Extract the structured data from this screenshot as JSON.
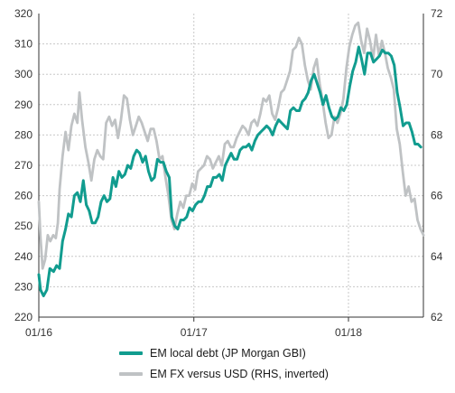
{
  "chart_data": {
    "type": "line",
    "x_ticks": [
      "01/16",
      "01/17",
      "01/18"
    ],
    "y_left": {
      "min": 220,
      "max": 320,
      "ticks": [
        220,
        230,
        240,
        250,
        260,
        270,
        280,
        290,
        300,
        310,
        320
      ]
    },
    "y_right": {
      "min": 62,
      "max": 72,
      "inverted": true,
      "tick_labels_top_to_bottom": [
        72,
        70,
        68,
        66,
        64,
        62
      ]
    },
    "grid": "dashed-gray",
    "legend_position": "bottom",
    "series": [
      {
        "name": "EM local debt (JP Morgan GBI)",
        "axis": "left",
        "color": "#119c8f",
        "points": [
          [
            "2016-01-01",
            234
          ],
          [
            "2016-01-05",
            229
          ],
          [
            "2016-01-12",
            227
          ],
          [
            "2016-01-20",
            229
          ],
          [
            "2016-01-27",
            236
          ],
          [
            "2016-02-05",
            235
          ],
          [
            "2016-02-12",
            237
          ],
          [
            "2016-02-19",
            236
          ],
          [
            "2016-02-26",
            245
          ],
          [
            "2016-03-04",
            249
          ],
          [
            "2016-03-11",
            254
          ],
          [
            "2016-03-18",
            253
          ],
          [
            "2016-03-25",
            260
          ],
          [
            "2016-04-01",
            261
          ],
          [
            "2016-04-08",
            258
          ],
          [
            "2016-04-15",
            265
          ],
          [
            "2016-04-22",
            257
          ],
          [
            "2016-04-29",
            255
          ],
          [
            "2016-05-06",
            251
          ],
          [
            "2016-05-13",
            251
          ],
          [
            "2016-05-20",
            253
          ],
          [
            "2016-05-27",
            258
          ],
          [
            "2016-06-03",
            260
          ],
          [
            "2016-06-10",
            258
          ],
          [
            "2016-06-17",
            259
          ],
          [
            "2016-06-24",
            266
          ],
          [
            "2016-07-01",
            263
          ],
          [
            "2016-07-08",
            268
          ],
          [
            "2016-07-15",
            266
          ],
          [
            "2016-07-22",
            267
          ],
          [
            "2016-07-29",
            270
          ],
          [
            "2016-08-05",
            269
          ],
          [
            "2016-08-12",
            273
          ],
          [
            "2016-08-19",
            275
          ],
          [
            "2016-08-26",
            274
          ],
          [
            "2016-09-02",
            271
          ],
          [
            "2016-09-09",
            273
          ],
          [
            "2016-09-16",
            268
          ],
          [
            "2016-09-23",
            265
          ],
          [
            "2016-09-30",
            266
          ],
          [
            "2016-10-07",
            272
          ],
          [
            "2016-10-14",
            271
          ],
          [
            "2016-10-21",
            271
          ],
          [
            "2016-10-28",
            268
          ],
          [
            "2016-11-04",
            266
          ],
          [
            "2016-11-10",
            253
          ],
          [
            "2016-11-17",
            250
          ],
          [
            "2016-11-24",
            249
          ],
          [
            "2016-12-01",
            252
          ],
          [
            "2016-12-08",
            252
          ],
          [
            "2016-12-15",
            253
          ],
          [
            "2016-12-22",
            256
          ],
          [
            "2016-12-29",
            255
          ],
          [
            "2017-01-05",
            257
          ],
          [
            "2017-01-12",
            258
          ],
          [
            "2017-01-19",
            258
          ],
          [
            "2017-01-26",
            260
          ],
          [
            "2017-02-02",
            263
          ],
          [
            "2017-02-09",
            263
          ],
          [
            "2017-02-16",
            266
          ],
          [
            "2017-02-23",
            266
          ],
          [
            "2017-03-02",
            267
          ],
          [
            "2017-03-09",
            265
          ],
          [
            "2017-03-16",
            270
          ],
          [
            "2017-03-23",
            272
          ],
          [
            "2017-03-30",
            274
          ],
          [
            "2017-04-06",
            272
          ],
          [
            "2017-04-13",
            272
          ],
          [
            "2017-04-20",
            275
          ],
          [
            "2017-04-27",
            276
          ],
          [
            "2017-05-04",
            276
          ],
          [
            "2017-05-11",
            277
          ],
          [
            "2017-05-18",
            275
          ],
          [
            "2017-05-25",
            278
          ],
          [
            "2017-06-01",
            280
          ],
          [
            "2017-06-08",
            281
          ],
          [
            "2017-06-15",
            282
          ],
          [
            "2017-06-22",
            283
          ],
          [
            "2017-06-29",
            282
          ],
          [
            "2017-07-06",
            280
          ],
          [
            "2017-07-13",
            283
          ],
          [
            "2017-07-20",
            285
          ],
          [
            "2017-07-27",
            284
          ],
          [
            "2017-08-03",
            283
          ],
          [
            "2017-08-10",
            282
          ],
          [
            "2017-08-17",
            288
          ],
          [
            "2017-08-24",
            289
          ],
          [
            "2017-08-31",
            288
          ],
          [
            "2017-09-07",
            288
          ],
          [
            "2017-09-14",
            291
          ],
          [
            "2017-09-21",
            292
          ],
          [
            "2017-09-28",
            294
          ],
          [
            "2017-10-05",
            298
          ],
          [
            "2017-10-12",
            300
          ],
          [
            "2017-10-19",
            297
          ],
          [
            "2017-10-26",
            294
          ],
          [
            "2017-11-02",
            290
          ],
          [
            "2017-11-09",
            293
          ],
          [
            "2017-11-16",
            289
          ],
          [
            "2017-11-23",
            286
          ],
          [
            "2017-11-30",
            285
          ],
          [
            "2017-12-07",
            286
          ],
          [
            "2017-12-14",
            289
          ],
          [
            "2017-12-21",
            288
          ],
          [
            "2017-12-28",
            290
          ],
          [
            "2018-01-04",
            296
          ],
          [
            "2018-01-11",
            301
          ],
          [
            "2018-01-18",
            304
          ],
          [
            "2018-01-25",
            309
          ],
          [
            "2018-02-01",
            305
          ],
          [
            "2018-02-08",
            300
          ],
          [
            "2018-02-15",
            307
          ],
          [
            "2018-02-22",
            307
          ],
          [
            "2018-03-01",
            304
          ],
          [
            "2018-03-08",
            305
          ],
          [
            "2018-03-15",
            306
          ],
          [
            "2018-03-22",
            308
          ],
          [
            "2018-03-29",
            307
          ],
          [
            "2018-04-05",
            307
          ],
          [
            "2018-04-12",
            306
          ],
          [
            "2018-04-19",
            303
          ],
          [
            "2018-04-26",
            294
          ],
          [
            "2018-05-03",
            289
          ],
          [
            "2018-05-10",
            283
          ],
          [
            "2018-05-17",
            284
          ],
          [
            "2018-05-24",
            284
          ],
          [
            "2018-05-31",
            281
          ],
          [
            "2018-06-07",
            277
          ],
          [
            "2018-06-14",
            277
          ],
          [
            "2018-06-21",
            276
          ]
        ]
      },
      {
        "name": "EM FX versus USD (RHS, inverted)",
        "axis": "right",
        "color": "#bfc2c4",
        "points": [
          [
            "2016-01-01",
            65.8
          ],
          [
            "2016-01-05",
            64.6
          ],
          [
            "2016-01-10",
            63.6
          ],
          [
            "2016-01-16",
            63.9
          ],
          [
            "2016-01-22",
            64.7
          ],
          [
            "2016-01-28",
            64.5
          ],
          [
            "2016-02-04",
            64.7
          ],
          [
            "2016-02-10",
            64.6
          ],
          [
            "2016-02-15",
            65.1
          ],
          [
            "2016-02-19",
            66.2
          ],
          [
            "2016-02-26",
            67.3
          ],
          [
            "2016-03-04",
            68.1
          ],
          [
            "2016-03-11",
            67.5
          ],
          [
            "2016-03-18",
            68.3
          ],
          [
            "2016-03-25",
            68.7
          ],
          [
            "2016-04-01",
            68.4
          ],
          [
            "2016-04-06",
            69.4
          ],
          [
            "2016-04-12",
            68.5
          ],
          [
            "2016-04-20",
            67.6
          ],
          [
            "2016-04-27",
            67.1
          ],
          [
            "2016-05-04",
            66.5
          ],
          [
            "2016-05-11",
            67.2
          ],
          [
            "2016-05-18",
            67.5
          ],
          [
            "2016-05-25",
            67.3
          ],
          [
            "2016-06-01",
            67.2
          ],
          [
            "2016-06-08",
            68.4
          ],
          [
            "2016-06-15",
            68.6
          ],
          [
            "2016-06-22",
            68.3
          ],
          [
            "2016-06-29",
            68.5
          ],
          [
            "2016-07-06",
            67.9
          ],
          [
            "2016-07-13",
            68.5
          ],
          [
            "2016-07-20",
            69.3
          ],
          [
            "2016-07-27",
            69.2
          ],
          [
            "2016-08-03",
            68.5
          ],
          [
            "2016-08-10",
            68.0
          ],
          [
            "2016-08-17",
            68.3
          ],
          [
            "2016-08-24",
            68.6
          ],
          [
            "2016-08-31",
            68.4
          ],
          [
            "2016-09-07",
            68.1
          ],
          [
            "2016-09-14",
            67.8
          ],
          [
            "2016-09-21",
            68.2
          ],
          [
            "2016-09-28",
            68.2
          ],
          [
            "2016-10-05",
            67.8
          ],
          [
            "2016-10-12",
            67.2
          ],
          [
            "2016-10-19",
            67.3
          ],
          [
            "2016-10-26",
            66.6
          ],
          [
            "2016-11-02",
            66.0
          ],
          [
            "2016-11-09",
            65.2
          ],
          [
            "2016-11-16",
            64.9
          ],
          [
            "2016-11-23",
            65.4
          ],
          [
            "2016-11-30",
            65.8
          ],
          [
            "2016-12-07",
            65.6
          ],
          [
            "2016-12-14",
            66.0
          ],
          [
            "2016-12-21",
            66.0
          ],
          [
            "2016-12-28",
            66.4
          ],
          [
            "2017-01-04",
            66.2
          ],
          [
            "2017-01-11",
            66.8
          ],
          [
            "2017-01-18",
            66.9
          ],
          [
            "2017-01-25",
            67.0
          ],
          [
            "2017-02-01",
            67.3
          ],
          [
            "2017-02-08",
            67.2
          ],
          [
            "2017-02-15",
            66.9
          ],
          [
            "2017-02-22",
            67.1
          ],
          [
            "2017-03-01",
            67.3
          ],
          [
            "2017-03-08",
            67.0
          ],
          [
            "2017-03-15",
            67.7
          ],
          [
            "2017-03-22",
            67.8
          ],
          [
            "2017-03-29",
            67.6
          ],
          [
            "2017-04-05",
            67.6
          ],
          [
            "2017-04-12",
            67.9
          ],
          [
            "2017-04-19",
            68.1
          ],
          [
            "2017-04-26",
            68.3
          ],
          [
            "2017-05-03",
            68.2
          ],
          [
            "2017-05-10",
            68.0
          ],
          [
            "2017-05-17",
            68.4
          ],
          [
            "2017-05-24",
            68.5
          ],
          [
            "2017-05-31",
            68.3
          ],
          [
            "2017-06-07",
            68.7
          ],
          [
            "2017-06-14",
            69.2
          ],
          [
            "2017-06-21",
            69.1
          ],
          [
            "2017-06-28",
            69.3
          ],
          [
            "2017-07-05",
            68.7
          ],
          [
            "2017-07-12",
            68.5
          ],
          [
            "2017-07-19",
            68.9
          ],
          [
            "2017-07-26",
            69.4
          ],
          [
            "2017-08-02",
            69.5
          ],
          [
            "2017-08-09",
            69.8
          ],
          [
            "2017-08-16",
            70.1
          ],
          [
            "2017-08-23",
            70.8
          ],
          [
            "2017-08-30",
            70.9
          ],
          [
            "2017-09-06",
            71.2
          ],
          [
            "2017-09-13",
            71.0
          ],
          [
            "2017-09-20",
            70.3
          ],
          [
            "2017-09-27",
            69.8
          ],
          [
            "2017-10-04",
            69.5
          ],
          [
            "2017-10-11",
            70.2
          ],
          [
            "2017-10-18",
            70.5
          ],
          [
            "2017-10-25",
            69.7
          ],
          [
            "2017-11-01",
            69.1
          ],
          [
            "2017-11-08",
            68.4
          ],
          [
            "2017-11-15",
            67.9
          ],
          [
            "2017-11-22",
            68.0
          ],
          [
            "2017-11-29",
            68.6
          ],
          [
            "2017-12-06",
            68.4
          ],
          [
            "2017-12-13",
            68.7
          ],
          [
            "2017-12-20",
            69.2
          ],
          [
            "2017-12-27",
            70.2
          ],
          [
            "2018-01-03",
            70.9
          ],
          [
            "2018-01-10",
            71.3
          ],
          [
            "2018-01-17",
            71.6
          ],
          [
            "2018-01-24",
            71.7
          ],
          [
            "2018-01-31",
            71.1
          ],
          [
            "2018-02-07",
            70.7
          ],
          [
            "2018-02-14",
            71.5
          ],
          [
            "2018-02-21",
            71.1
          ],
          [
            "2018-02-28",
            70.5
          ],
          [
            "2018-03-07",
            71.3
          ],
          [
            "2018-03-14",
            70.6
          ],
          [
            "2018-03-21",
            71.1
          ],
          [
            "2018-03-28",
            70.7
          ],
          [
            "2018-04-04",
            70.2
          ],
          [
            "2018-04-11",
            69.9
          ],
          [
            "2018-04-18",
            69.5
          ],
          [
            "2018-04-25",
            68.2
          ],
          [
            "2018-05-02",
            67.7
          ],
          [
            "2018-05-09",
            66.8
          ],
          [
            "2018-05-16",
            66.0
          ],
          [
            "2018-05-23",
            66.3
          ],
          [
            "2018-05-30",
            65.8
          ],
          [
            "2018-06-06",
            65.9
          ],
          [
            "2018-06-13",
            65.2
          ],
          [
            "2018-06-20",
            64.9
          ],
          [
            "2018-06-27",
            64.7
          ]
        ]
      }
    ]
  }
}
